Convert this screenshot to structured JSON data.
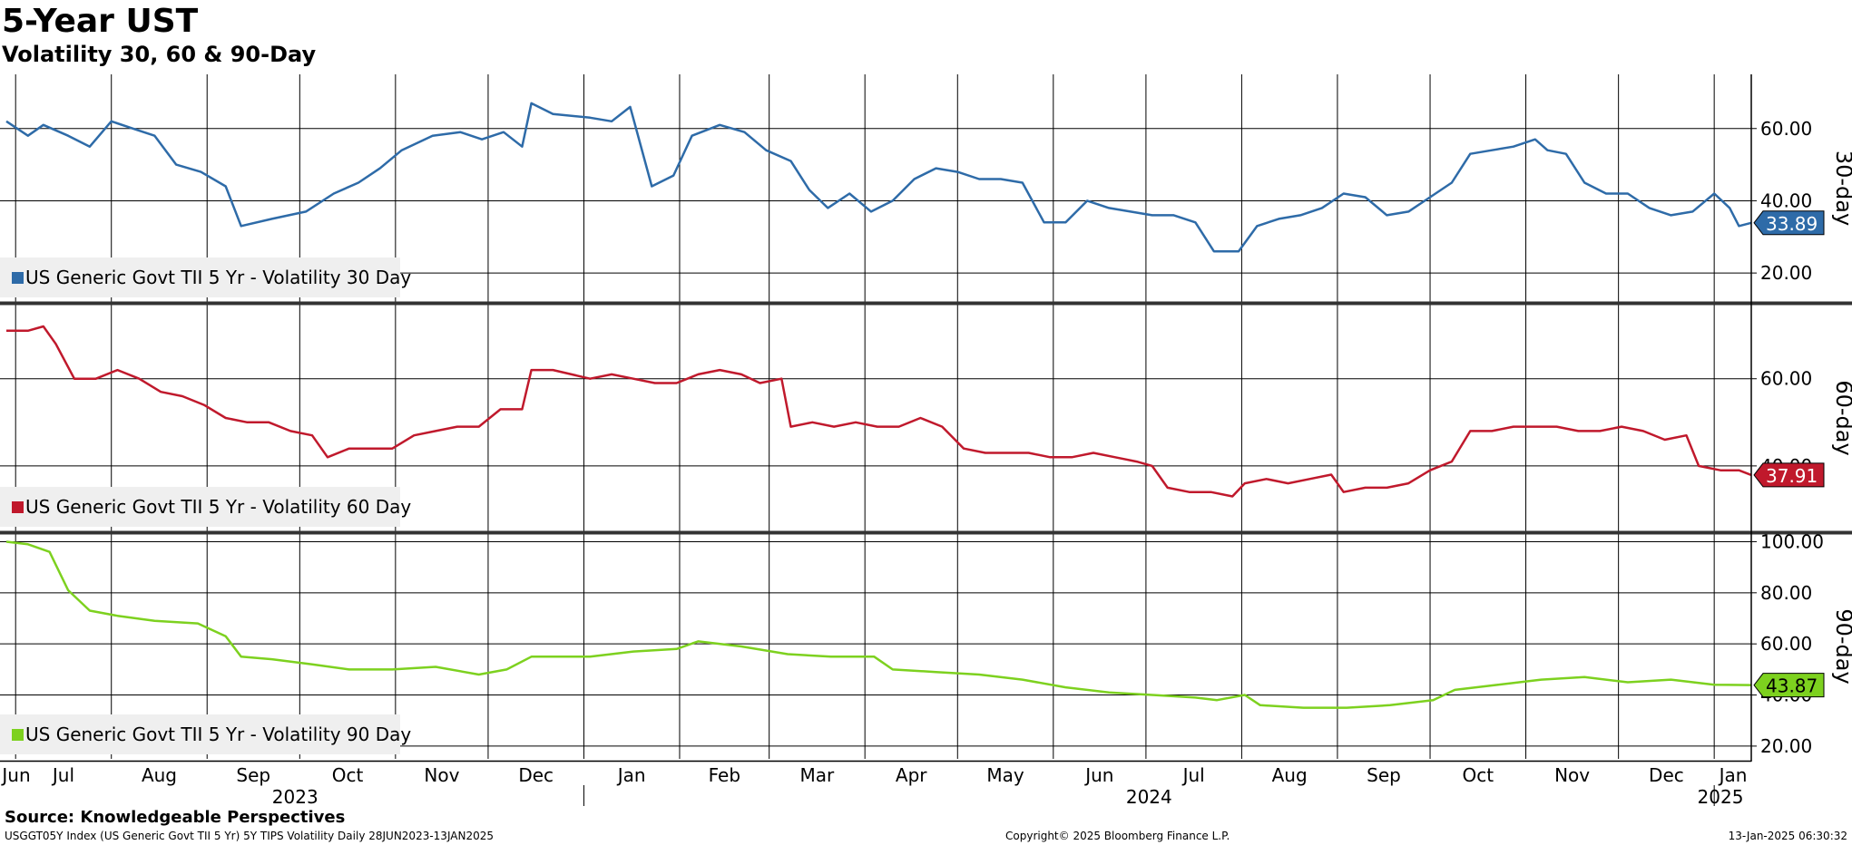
{
  "header": {
    "title": "5-Year UST",
    "subtitle": "Volatility 30, 60 & 90-Day"
  },
  "footer": {
    "source": "Source: Knowledgeable Perspectives",
    "ticker_info": "USGGT05Y Index (US Generic Govt TII 5 Yr) 5Y TIPS Volatility  Daily 28JUN2023-13JAN2025",
    "copyright": "Copyright© 2025 Bloomberg Finance L.P.",
    "timestamp": "13-Jan-2025 06:30:32"
  },
  "chart_data": {
    "type": "line",
    "x_axis": {
      "months": [
        "Jun",
        "Jul",
        "Aug",
        "Sep",
        "Oct",
        "Nov",
        "Dec",
        "Jan",
        "Feb",
        "Mar",
        "Apr",
        "May",
        "Jun",
        "Jul",
        "Aug",
        "Sep",
        "Oct",
        "Nov",
        "Dec",
        "Jan"
      ],
      "years": [
        "2023",
        "2024",
        "2025"
      ],
      "range": [
        "2023-06-28",
        "2025-01-13"
      ]
    },
    "panels": [
      {
        "axis_label": "30-day",
        "ylim": [
          12,
          75
        ],
        "yticks": [
          "20.00",
          "40.00",
          "60.00"
        ],
        "color": "#2e6ba8",
        "legend": "US Generic Govt TII 5 Yr - Volatility 30 Day",
        "last_value": "33.89",
        "series": [
          [
            "2023-06-28",
            62
          ],
          [
            "2023-07-05",
            58
          ],
          [
            "2023-07-10",
            61
          ],
          [
            "2023-07-18",
            58
          ],
          [
            "2023-07-25",
            55
          ],
          [
            "2023-08-01",
            62
          ],
          [
            "2023-08-08",
            60
          ],
          [
            "2023-08-15",
            58
          ],
          [
            "2023-08-22",
            50
          ],
          [
            "2023-08-30",
            48
          ],
          [
            "2023-09-07",
            44
          ],
          [
            "2023-09-12",
            33
          ],
          [
            "2023-09-22",
            35
          ],
          [
            "2023-10-03",
            37
          ],
          [
            "2023-10-12",
            42
          ],
          [
            "2023-10-20",
            45
          ],
          [
            "2023-10-27",
            49
          ],
          [
            "2023-11-03",
            54
          ],
          [
            "2023-11-13",
            58
          ],
          [
            "2023-11-22",
            59
          ],
          [
            "2023-11-29",
            57
          ],
          [
            "2023-12-06",
            59
          ],
          [
            "2023-12-12",
            55
          ],
          [
            "2023-12-15",
            67
          ],
          [
            "2023-12-22",
            64
          ],
          [
            "2024-01-03",
            63
          ],
          [
            "2024-01-10",
            62
          ],
          [
            "2024-01-16",
            66
          ],
          [
            "2024-01-23",
            44
          ],
          [
            "2024-01-30",
            47
          ],
          [
            "2024-02-05",
            58
          ],
          [
            "2024-02-14",
            61
          ],
          [
            "2024-02-22",
            59
          ],
          [
            "2024-02-29",
            54
          ],
          [
            "2024-03-08",
            51
          ],
          [
            "2024-03-14",
            43
          ],
          [
            "2024-03-20",
            38
          ],
          [
            "2024-03-27",
            42
          ],
          [
            "2024-04-03",
            37
          ],
          [
            "2024-04-10",
            40
          ],
          [
            "2024-04-17",
            46
          ],
          [
            "2024-04-24",
            49
          ],
          [
            "2024-05-01",
            48
          ],
          [
            "2024-05-08",
            46
          ],
          [
            "2024-05-15",
            46
          ],
          [
            "2024-05-22",
            45
          ],
          [
            "2024-05-29",
            34
          ],
          [
            "2024-06-05",
            34
          ],
          [
            "2024-06-12",
            40
          ],
          [
            "2024-06-19",
            38
          ],
          [
            "2024-06-26",
            37
          ],
          [
            "2024-07-03",
            36
          ],
          [
            "2024-07-10",
            36
          ],
          [
            "2024-07-17",
            34
          ],
          [
            "2024-07-23",
            26
          ],
          [
            "2024-07-31",
            26
          ],
          [
            "2024-08-06",
            33
          ],
          [
            "2024-08-13",
            35
          ],
          [
            "2024-08-20",
            36
          ],
          [
            "2024-08-27",
            38
          ],
          [
            "2024-09-03",
            42
          ],
          [
            "2024-09-10",
            41
          ],
          [
            "2024-09-17",
            36
          ],
          [
            "2024-09-24",
            37
          ],
          [
            "2024-10-01",
            41
          ],
          [
            "2024-10-08",
            45
          ],
          [
            "2024-10-14",
            53
          ],
          [
            "2024-10-21",
            54
          ],
          [
            "2024-10-28",
            55
          ],
          [
            "2024-11-04",
            57
          ],
          [
            "2024-11-08",
            54
          ],
          [
            "2024-11-14",
            53
          ],
          [
            "2024-11-20",
            45
          ],
          [
            "2024-11-27",
            42
          ],
          [
            "2024-12-04",
            42
          ],
          [
            "2024-12-11",
            38
          ],
          [
            "2024-12-18",
            36
          ],
          [
            "2024-12-25",
            37
          ],
          [
            "2025-01-01",
            42
          ],
          [
            "2025-01-06",
            38
          ],
          [
            "2025-01-09",
            33
          ],
          [
            "2025-01-13",
            33.89
          ]
        ]
      },
      {
        "axis_label": "60-day",
        "ylim": [
          25,
          77
        ],
        "yticks": [
          "40.00",
          "60.00"
        ],
        "color": "#c0192c",
        "legend": "US Generic Govt TII 5 Yr - Volatility 60 Day",
        "last_value": "37.91",
        "series": [
          [
            "2023-06-28",
            71
          ],
          [
            "2023-07-05",
            71
          ],
          [
            "2023-07-10",
            72
          ],
          [
            "2023-07-14",
            68
          ],
          [
            "2023-07-20",
            60
          ],
          [
            "2023-07-27",
            60
          ],
          [
            "2023-08-03",
            62
          ],
          [
            "2023-08-10",
            60
          ],
          [
            "2023-08-17",
            57
          ],
          [
            "2023-08-24",
            56
          ],
          [
            "2023-08-31",
            54
          ],
          [
            "2023-09-07",
            51
          ],
          [
            "2023-09-14",
            50
          ],
          [
            "2023-09-21",
            50
          ],
          [
            "2023-09-28",
            48
          ],
          [
            "2023-10-05",
            47
          ],
          [
            "2023-10-10",
            42
          ],
          [
            "2023-10-17",
            44
          ],
          [
            "2023-10-24",
            44
          ],
          [
            "2023-10-31",
            44
          ],
          [
            "2023-11-07",
            47
          ],
          [
            "2023-11-14",
            48
          ],
          [
            "2023-11-21",
            49
          ],
          [
            "2023-11-28",
            49
          ],
          [
            "2023-12-05",
            53
          ],
          [
            "2023-12-12",
            53
          ],
          [
            "2023-12-15",
            62
          ],
          [
            "2023-12-22",
            62
          ],
          [
            "2024-01-03",
            60
          ],
          [
            "2024-01-10",
            61
          ],
          [
            "2024-01-17",
            60
          ],
          [
            "2024-01-24",
            59
          ],
          [
            "2024-01-31",
            59
          ],
          [
            "2024-02-07",
            61
          ],
          [
            "2024-02-14",
            62
          ],
          [
            "2024-02-21",
            61
          ],
          [
            "2024-02-27",
            59
          ],
          [
            "2024-03-05",
            60
          ],
          [
            "2024-03-08",
            49
          ],
          [
            "2024-03-15",
            50
          ],
          [
            "2024-03-22",
            49
          ],
          [
            "2024-03-29",
            50
          ],
          [
            "2024-04-05",
            49
          ],
          [
            "2024-04-12",
            49
          ],
          [
            "2024-04-19",
            51
          ],
          [
            "2024-04-26",
            49
          ],
          [
            "2024-05-03",
            44
          ],
          [
            "2024-05-10",
            43
          ],
          [
            "2024-05-17",
            43
          ],
          [
            "2024-05-24",
            43
          ],
          [
            "2024-05-31",
            42
          ],
          [
            "2024-06-07",
            42
          ],
          [
            "2024-06-14",
            43
          ],
          [
            "2024-06-21",
            42
          ],
          [
            "2024-06-28",
            41
          ],
          [
            "2024-07-03",
            40
          ],
          [
            "2024-07-08",
            35
          ],
          [
            "2024-07-15",
            34
          ],
          [
            "2024-07-22",
            34
          ],
          [
            "2024-07-29",
            33
          ],
          [
            "2024-08-02",
            36
          ],
          [
            "2024-08-09",
            37
          ],
          [
            "2024-08-16",
            36
          ],
          [
            "2024-08-23",
            37
          ],
          [
            "2024-08-30",
            38
          ],
          [
            "2024-09-03",
            34
          ],
          [
            "2024-09-10",
            35
          ],
          [
            "2024-09-17",
            35
          ],
          [
            "2024-09-24",
            36
          ],
          [
            "2024-10-01",
            39
          ],
          [
            "2024-10-08",
            41
          ],
          [
            "2024-10-14",
            48
          ],
          [
            "2024-10-21",
            48
          ],
          [
            "2024-10-28",
            49
          ],
          [
            "2024-11-04",
            49
          ],
          [
            "2024-11-11",
            49
          ],
          [
            "2024-11-18",
            48
          ],
          [
            "2024-11-25",
            48
          ],
          [
            "2024-12-02",
            49
          ],
          [
            "2024-12-09",
            48
          ],
          [
            "2024-12-16",
            46
          ],
          [
            "2024-12-23",
            47
          ],
          [
            "2024-12-27",
            40
          ],
          [
            "2025-01-03",
            39
          ],
          [
            "2025-01-09",
            39
          ],
          [
            "2025-01-13",
            37.91
          ]
        ]
      },
      {
        "axis_label": "90-day",
        "ylim": [
          15,
          103
        ],
        "yticks": [
          "20.00",
          "40.00",
          "60.00",
          "80.00",
          "100.00"
        ],
        "color": "#7dd11f",
        "legend": "US Generic Govt TII 5 Yr - Volatility 90 Day",
        "last_value": "43.87",
        "series": [
          [
            "2023-06-28",
            100
          ],
          [
            "2023-07-05",
            99
          ],
          [
            "2023-07-12",
            96
          ],
          [
            "2023-07-18",
            81
          ],
          [
            "2023-07-25",
            73
          ],
          [
            "2023-08-03",
            71
          ],
          [
            "2023-08-15",
            69
          ],
          [
            "2023-08-29",
            68
          ],
          [
            "2023-09-07",
            63
          ],
          [
            "2023-09-12",
            55
          ],
          [
            "2023-09-22",
            54
          ],
          [
            "2023-10-05",
            52
          ],
          [
            "2023-10-17",
            50
          ],
          [
            "2023-10-31",
            50
          ],
          [
            "2023-11-14",
            51
          ],
          [
            "2023-11-28",
            48
          ],
          [
            "2023-12-07",
            50
          ],
          [
            "2023-12-15",
            55
          ],
          [
            "2024-01-03",
            55
          ],
          [
            "2024-01-17",
            57
          ],
          [
            "2024-01-31",
            58
          ],
          [
            "2024-02-07",
            61
          ],
          [
            "2024-02-21",
            59
          ],
          [
            "2024-03-07",
            56
          ],
          [
            "2024-03-21",
            55
          ],
          [
            "2024-04-04",
            55
          ],
          [
            "2024-04-10",
            50
          ],
          [
            "2024-04-24",
            49
          ],
          [
            "2024-05-08",
            48
          ],
          [
            "2024-05-22",
            46
          ],
          [
            "2024-06-05",
            43
          ],
          [
            "2024-06-19",
            41
          ],
          [
            "2024-07-03",
            40
          ],
          [
            "2024-07-17",
            39
          ],
          [
            "2024-07-24",
            38
          ],
          [
            "2024-08-02",
            40
          ],
          [
            "2024-08-07",
            36
          ],
          [
            "2024-08-21",
            35
          ],
          [
            "2024-09-04",
            35
          ],
          [
            "2024-09-18",
            36
          ],
          [
            "2024-10-02",
            38
          ],
          [
            "2024-10-09",
            42
          ],
          [
            "2024-10-23",
            44
          ],
          [
            "2024-11-06",
            46
          ],
          [
            "2024-11-20",
            47
          ],
          [
            "2024-12-04",
            45
          ],
          [
            "2024-12-18",
            46
          ],
          [
            "2025-01-01",
            44
          ],
          [
            "2025-01-13",
            43.87
          ]
        ]
      }
    ]
  }
}
